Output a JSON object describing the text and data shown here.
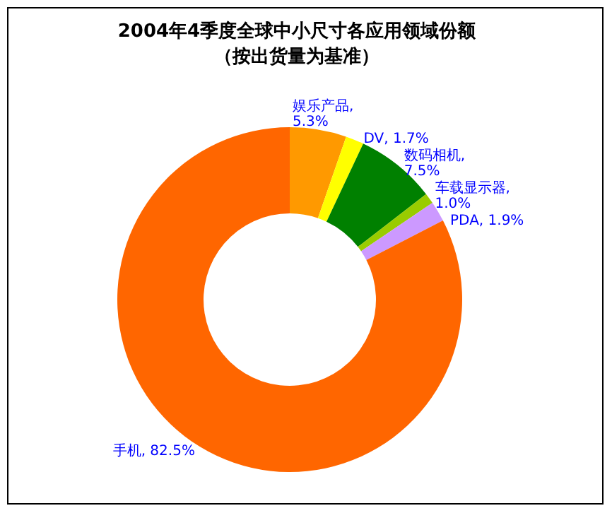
{
  "chart_data": {
    "type": "donut",
    "title": "2004年4季度全球中小尺寸各应用领域份额",
    "subtitle": "（按出货量为基准）",
    "categories": [
      "娱乐产品",
      "DV",
      "数码相机",
      "车载显示器",
      "PDA",
      "手机"
    ],
    "values": [
      5.3,
      1.7,
      7.5,
      1.0,
      1.9,
      82.5
    ],
    "colors": [
      "#ff9900",
      "#ffff00",
      "#008000",
      "#99cc00",
      "#cc99ff",
      "#ff6600"
    ],
    "value_labels": [
      ", 5.3%",
      ", 1.7%",
      ", 7.5%",
      ", 1.0%",
      ", 1.9%",
      ", 82.5%"
    ]
  }
}
